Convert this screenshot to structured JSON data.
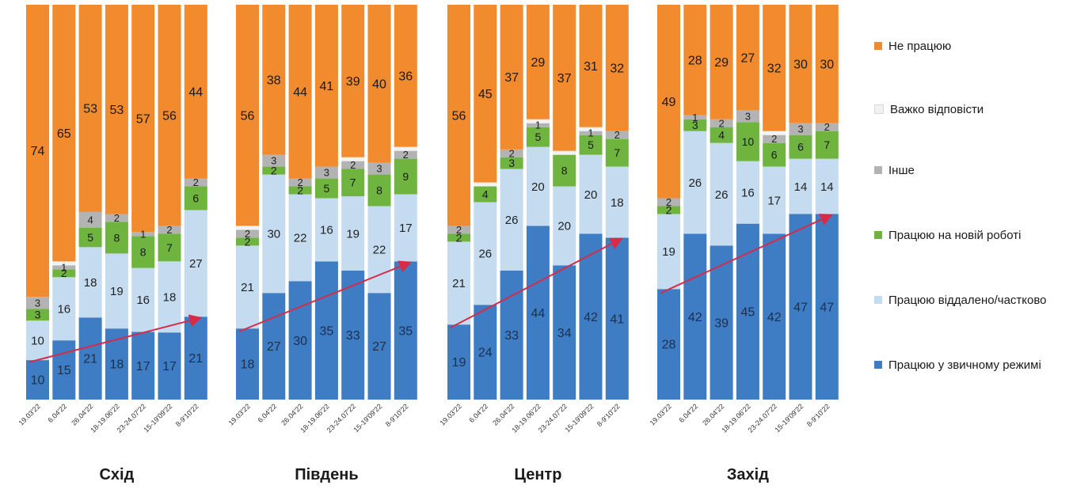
{
  "chart_data": {
    "type": "bar",
    "stacked": true,
    "legend_position": "right",
    "colors": {
      "ne_pratsiuiu": "#f28a2e",
      "vazhko": "#f2f2f2",
      "inshe": "#b3b3b3",
      "nova_robota": "#6fb43f",
      "viddaleno": "#c5dcf0",
      "zvychnyi": "#3e7cc4",
      "arrow": "#d62c4a"
    },
    "series": [
      {
        "key": "zvychnyi",
        "name": "Працюю у звичному режимі"
      },
      {
        "key": "viddaleno",
        "name": "Працюю віддалено/частково"
      },
      {
        "key": "nova_robota",
        "name": "Працюю на новій роботі"
      },
      {
        "key": "inshe",
        "name": "Інше"
      },
      {
        "key": "vazhko",
        "name": "Важко відповісти"
      },
      {
        "key": "ne_pratsiuiu",
        "name": "Не працюю"
      }
    ],
    "legend_order": [
      "ne_pratsiuiu",
      "vazhko",
      "inshe",
      "nova_robota",
      "viddaleno",
      "zvychnyi"
    ],
    "panels": [
      {
        "region": "Схід",
        "categories": [
          "19.03'22",
          "6.04'22",
          "26.04'22",
          "18-19.06'22",
          "23-24.07'22",
          "15-19'09'22",
          "8-9'10'22"
        ],
        "values": {
          "zvychnyi": [
            10,
            15,
            21,
            18,
            17,
            17,
            21
          ],
          "viddaleno": [
            10,
            16,
            18,
            19,
            16,
            18,
            27
          ],
          "nova_robota": [
            3,
            2,
            5,
            8,
            8,
            7,
            6
          ],
          "inshe": [
            3,
            1,
            4,
            2,
            1,
            2,
            2
          ],
          "vazhko": [
            0,
            1,
            0,
            0,
            0,
            0,
            0
          ],
          "ne_pratsiuiu": [
            74,
            65,
            53,
            53,
            57,
            56,
            44
          ]
        },
        "labels": {
          "zvychnyi": [
            "10",
            "15",
            "21",
            "18",
            "17",
            "17",
            "21"
          ],
          "viddaleno": [
            "10",
            "16",
            "18",
            "19",
            "16",
            "18",
            "27"
          ],
          "nova_robota": [
            "3",
            "2",
            "5",
            "8",
            "8",
            "7",
            "6"
          ],
          "inshe": [
            "3",
            "1",
            "4",
            "2",
            "1",
            "2",
            "2"
          ],
          "vazhko": [
            "",
            "",
            "",
            "",
            "",
            "",
            ""
          ],
          "ne_pratsiuiu": [
            "74",
            "65",
            "53",
            "53",
            "57",
            "56",
            "44"
          ]
        }
      },
      {
        "region": "Південь",
        "categories": [
          "19.03'22",
          "6.04'22",
          "26.04'22",
          "18-19.06'22",
          "23-24.07'22",
          "15-19'09'22",
          "8-9'10'22"
        ],
        "values": {
          "zvychnyi": [
            18,
            27,
            30,
            35,
            33,
            27,
            35
          ],
          "viddaleno": [
            21,
            30,
            22,
            16,
            19,
            22,
            17
          ],
          "nova_robota": [
            2,
            2,
            2,
            5,
            7,
            8,
            9
          ],
          "inshe": [
            2,
            3,
            2,
            3,
            2,
            3,
            2
          ],
          "vazhko": [
            1,
            0,
            0,
            0,
            1,
            0,
            1
          ],
          "ne_pratsiuiu": [
            56,
            38,
            44,
            41,
            39,
            40,
            36
          ]
        },
        "labels": {
          "zvychnyi": [
            "18",
            "27",
            "30",
            "35",
            "33",
            "27",
            "35"
          ],
          "viddaleno": [
            "21",
            "30",
            "22",
            "16",
            "19",
            "22",
            "17"
          ],
          "nova_robota": [
            "2",
            "2",
            "2",
            "5",
            "7",
            "8",
            "9"
          ],
          "inshe": [
            "2",
            "3",
            "2",
            "3",
            "2",
            "3",
            "2"
          ],
          "vazhko": [
            "",
            "",
            "",
            "",
            "",
            "",
            ""
          ],
          "ne_pratsiuiu": [
            "56",
            "38",
            "44",
            "41",
            "39",
            "40",
            "36"
          ]
        }
      },
      {
        "region": "Центр",
        "categories": [
          "19.03'22",
          "6.04'22",
          "26.04'22",
          "18-19.06'22",
          "23-24.07'22",
          "15-19'09'22",
          "8-9'10'22"
        ],
        "values": {
          "zvychnyi": [
            19,
            24,
            33,
            44,
            34,
            42,
            41
          ],
          "viddaleno": [
            21,
            26,
            26,
            20,
            20,
            20,
            18
          ],
          "nova_robota": [
            2,
            4,
            3,
            5,
            8,
            5,
            7
          ],
          "inshe": [
            2,
            0,
            2,
            1,
            0,
            1,
            2
          ],
          "vazhko": [
            0,
            1,
            0,
            1,
            1,
            1,
            0
          ],
          "ne_pratsiuiu": [
            56,
            45,
            37,
            29,
            37,
            31,
            32
          ]
        },
        "labels": {
          "zvychnyi": [
            "19",
            "24",
            "33",
            "44",
            "34",
            "42",
            "41"
          ],
          "viddaleno": [
            "21",
            "26",
            "26",
            "20",
            "20",
            "20",
            "18"
          ],
          "nova_robota": [
            "2",
            "4",
            "3",
            "5",
            "8",
            "5",
            "7"
          ],
          "inshe": [
            "2",
            "",
            "2",
            "1",
            "",
            "1",
            "2"
          ],
          "vazhko": [
            "",
            "",
            "",
            "",
            "",
            "",
            ""
          ],
          "ne_pratsiuiu": [
            "56",
            "45",
            "37",
            "29",
            "37",
            "31",
            "32"
          ]
        }
      },
      {
        "region": "Захід",
        "categories": [
          "19.03'22",
          "6.04'22",
          "26.04'22",
          "18-19.06'22",
          "23-24.07'22",
          "15-19'09'22",
          "8-9'10'22"
        ],
        "values": {
          "zvychnyi": [
            28,
            42,
            39,
            45,
            42,
            47,
            47
          ],
          "viddaleno": [
            19,
            26,
            26,
            16,
            17,
            14,
            14
          ],
          "nova_robota": [
            2,
            3,
            4,
            10,
            6,
            6,
            7
          ],
          "inshe": [
            2,
            1,
            2,
            3,
            2,
            3,
            2
          ],
          "vazhko": [
            0,
            0,
            0,
            0,
            1,
            0,
            0
          ],
          "ne_pratsiuiu": [
            49,
            28,
            29,
            27,
            32,
            30,
            30
          ]
        },
        "labels": {
          "zvychnyi": [
            "28",
            "42",
            "39",
            "45",
            "42",
            "47",
            "47"
          ],
          "viddaleno": [
            "19",
            "26",
            "26",
            "16",
            "17",
            "14",
            "14"
          ],
          "nova_robota": [
            "2",
            "3",
            "4",
            "10",
            "6",
            "6",
            "7"
          ],
          "inshe": [
            "2",
            "1",
            "2",
            "3",
            "2",
            "3",
            "2"
          ],
          "vazhko": [
            "",
            "",
            "",
            "",
            "",
            "",
            ""
          ],
          "ne_pratsiuiu": [
            "49",
            "28",
            "29",
            "27",
            "32",
            "30",
            "30"
          ]
        }
      }
    ],
    "trend_arrows": true,
    "ylim": [
      0,
      100
    ],
    "grid": false
  }
}
